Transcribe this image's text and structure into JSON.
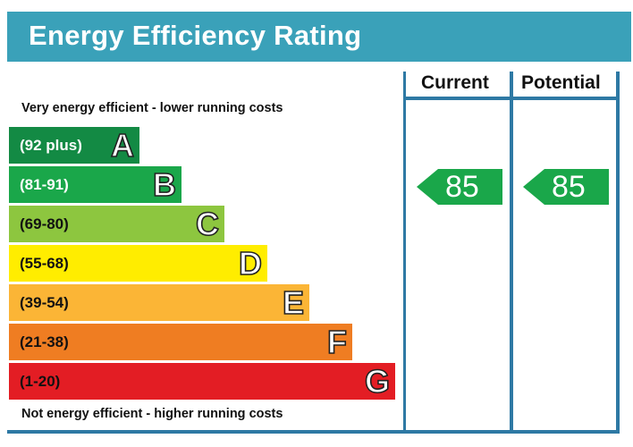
{
  "title": "Energy Efficiency Rating",
  "top_caption": "Very energy efficient - lower running costs",
  "bottom_caption": "Not energy efficient - higher running costs",
  "columns": {
    "current": "Current",
    "potential": "Potential"
  },
  "chart_data": {
    "type": "bar",
    "title": "Energy Efficiency Rating",
    "categories": [
      "A",
      "B",
      "C",
      "D",
      "E",
      "F",
      "G"
    ],
    "ranges": [
      "(92 plus)",
      "(81-91)",
      "(69-80)",
      "(55-68)",
      "(39-54)",
      "(21-38)",
      "(1-20)"
    ],
    "colors": [
      "#138a44",
      "#1aa74a",
      "#8dc63f",
      "#ffed00",
      "#fbb536",
      "#ef7d22",
      "#e31d24"
    ],
    "range_text_colors": [
      "#ffffff",
      "#ffffff",
      "#111111",
      "#111111",
      "#111111",
      "#111111",
      "#111111"
    ],
    "current": {
      "value": 85,
      "band": "B"
    },
    "potential": {
      "value": 85,
      "band": "B"
    },
    "arrow_color": "#1aa74a"
  }
}
